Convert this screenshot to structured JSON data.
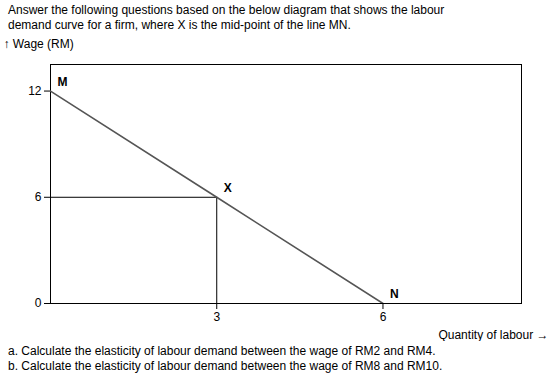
{
  "chart_data": {
    "type": "line",
    "title": "Answer the following questions based on the below diagram that shows the labour",
    "subtitle": "demand curve for a firm, where X is the mid-point of the line MN.",
    "x": [
      0,
      3,
      6
    ],
    "values": [
      12,
      6,
      0
    ],
    "color": "#555555",
    "xlabel": "Quantity of labour",
    "ylabel": "Wage (RM)",
    "xlim": [
      0,
      8.5
    ],
    "ylim": [
      0,
      13.5
    ],
    "xticks": [
      3,
      6
    ],
    "yticks": [
      0,
      6,
      12
    ],
    "grid": false,
    "annotations": [
      {
        "text": "M",
        "x": 0,
        "y": 12
      },
      {
        "text": "X",
        "x": 3,
        "y": 6
      },
      {
        "text": "N",
        "x": 6,
        "y": 0
      }
    ],
    "drop_lines": [
      {
        "x": 3,
        "y": 6
      }
    ],
    "caption": [
      "a.   Calculate the elasticity of labour demand between the wage of RM2 and RM4.",
      "b.   Calculate the elasticity of labour demand between the wage of RM8 and RM10."
    ]
  }
}
